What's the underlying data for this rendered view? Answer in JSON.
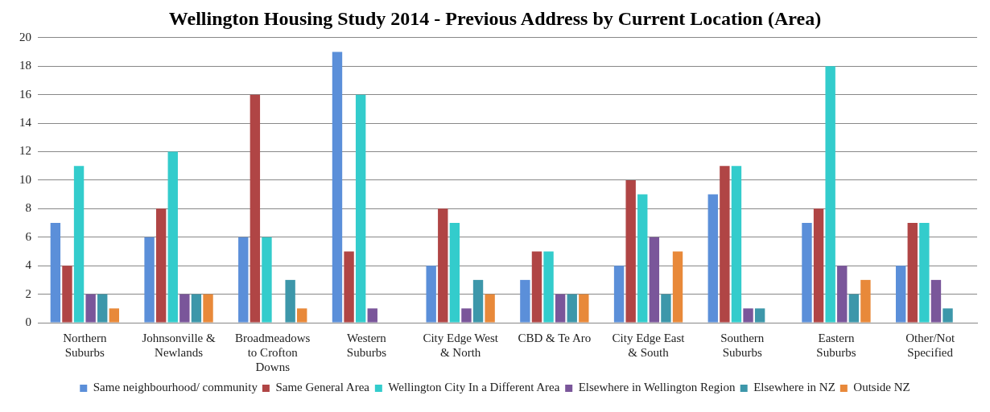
{
  "chart_data": {
    "type": "bar",
    "title": "Wellington Housing Study 2014 - Previous Address by Current Location (Area)",
    "categories": [
      "Northern Suburbs",
      "Johnsonville & Newlands",
      "Broadmeadows to Crofton Downs",
      "Western Suburbs",
      "City Edge West & North",
      "CBD & Te Aro",
      "City Edge East & South",
      "Southern Suburbs",
      "Eastern Suburbs",
      "Other/Not Specified"
    ],
    "series": [
      {
        "name": "Same neighbourhood/ community",
        "color": "#5b8fd9",
        "values": [
          7,
          6,
          6,
          19,
          4,
          3,
          4,
          9,
          7,
          4
        ]
      },
      {
        "name": "Same General Area",
        "color": "#b04545",
        "values": [
          4,
          8,
          16,
          5,
          8,
          5,
          10,
          11,
          8,
          7
        ]
      },
      {
        "name": "Wellington City In a Different Area",
        "color": "#33cccc",
        "values": [
          11,
          12,
          6,
          16,
          7,
          5,
          9,
          11,
          18,
          7
        ]
      },
      {
        "name": "Elsewhere in Wellington Region",
        "color": "#7a569a",
        "values": [
          2,
          2,
          0,
          1,
          1,
          2,
          6,
          1,
          4,
          3
        ]
      },
      {
        "name": "Elsewhere in NZ",
        "color": "#3d97aa",
        "values": [
          2,
          2,
          3,
          0,
          3,
          2,
          2,
          1,
          2,
          1
        ]
      },
      {
        "name": "Outside NZ",
        "color": "#e8893a",
        "values": [
          1,
          2,
          1,
          0,
          2,
          2,
          5,
          0,
          3,
          0
        ]
      }
    ],
    "ylim": [
      0,
      20
    ],
    "yticks": [
      0,
      2,
      4,
      6,
      8,
      10,
      12,
      14,
      16,
      18,
      20
    ],
    "grid": "y",
    "legend": "bottom"
  }
}
